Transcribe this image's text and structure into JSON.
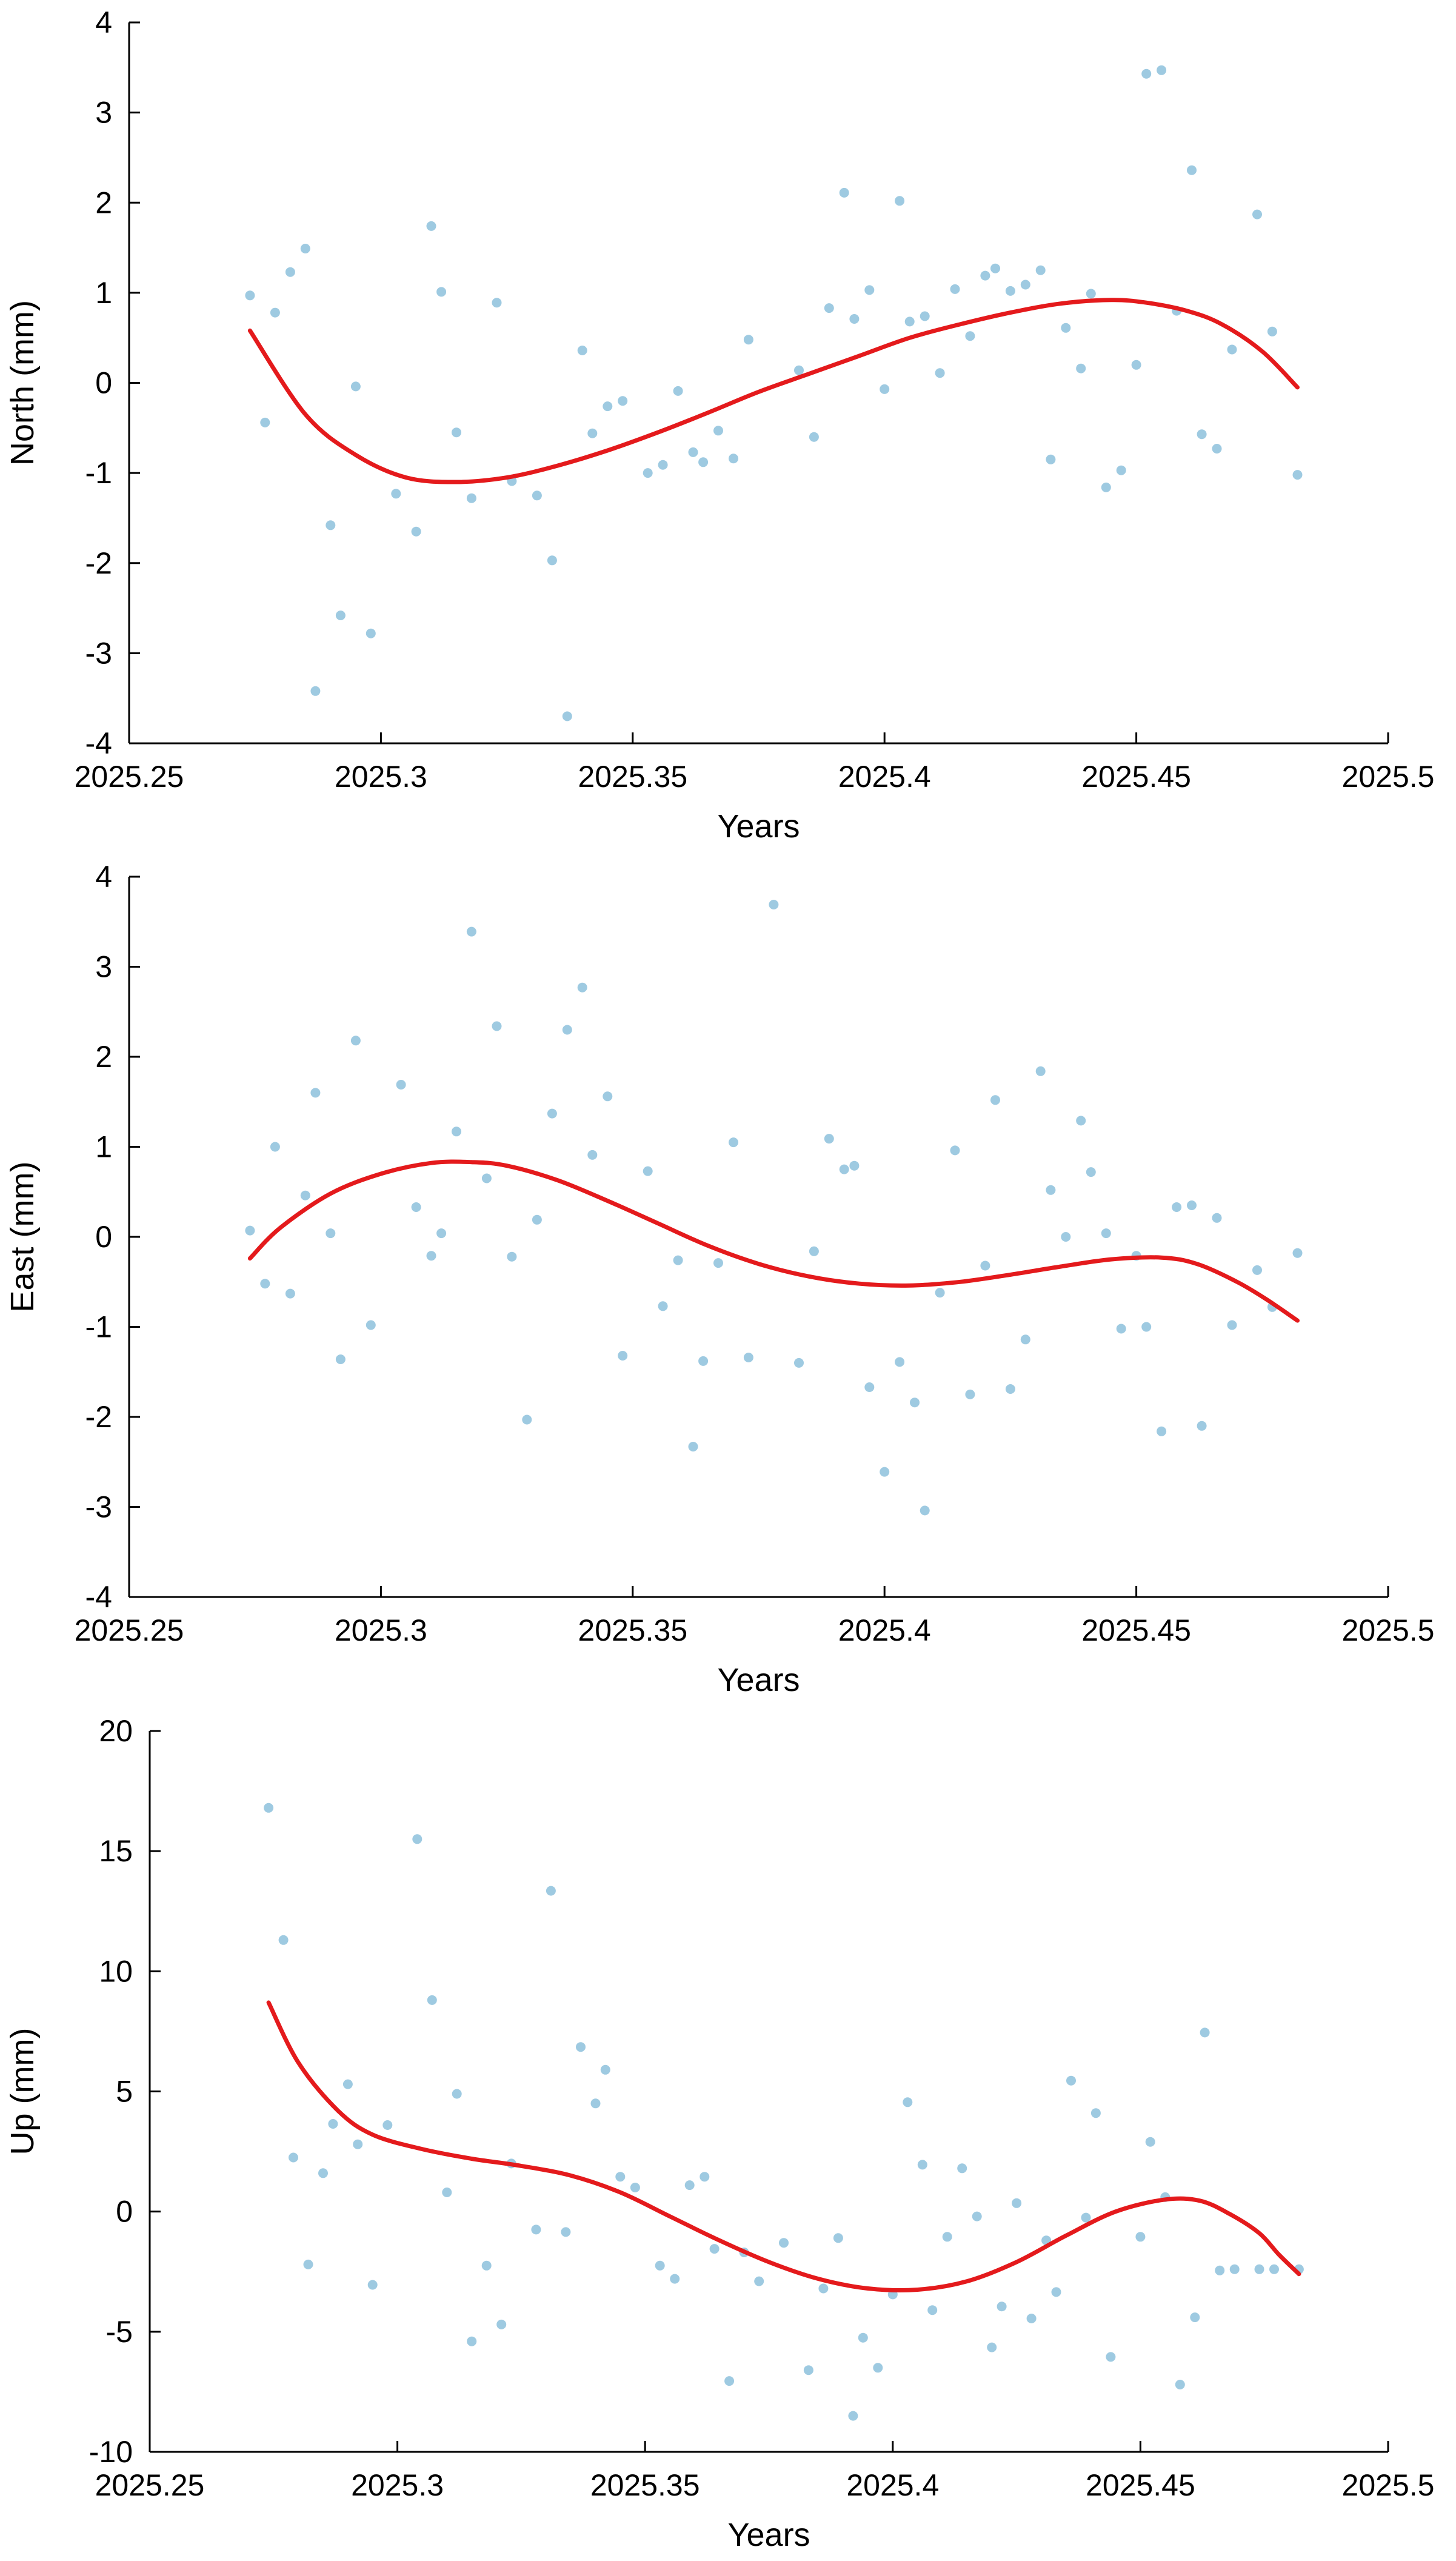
{
  "colors": {
    "points": "#9ecae1",
    "fit": "#e41a1c",
    "axis": "#000000"
  },
  "chart_data": [
    {
      "type": "scatter",
      "xlabel": "Years",
      "ylabel": "North (mm)",
      "xlim": [
        2025.25,
        2025.5
      ],
      "ylim": [
        -4,
        4
      ],
      "xticks": [
        "2025.25",
        "2025.3",
        "2025.35",
        "2025.4",
        "2025.45",
        "2025.5"
      ],
      "yticks": [
        "-4",
        "-3",
        "-2",
        "-1",
        "0",
        "1",
        "2",
        "3",
        "4"
      ],
      "grid": false,
      "series": [
        {
          "kind": "scatter",
          "x": [
            2025.274,
            2025.277,
            2025.279,
            2025.282,
            2025.285,
            2025.287,
            2025.29,
            2025.292,
            2025.295,
            2025.298,
            2025.303,
            2025.307,
            2025.31,
            2025.312,
            2025.315,
            2025.318,
            2025.323,
            2025.326,
            2025.331,
            2025.334,
            2025.337,
            2025.34,
            2025.342,
            2025.345,
            2025.348,
            2025.353,
            2025.356,
            2025.359,
            2025.362,
            2025.364,
            2025.367,
            2025.37,
            2025.373,
            2025.383,
            2025.386,
            2025.389,
            2025.392,
            2025.394,
            2025.397,
            2025.4,
            2025.403,
            2025.405,
            2025.408,
            2025.411,
            2025.414,
            2025.417,
            2025.42,
            2025.422,
            2025.425,
            2025.428,
            2025.431,
            2025.433,
            2025.436,
            2025.439,
            2025.441,
            2025.444,
            2025.447,
            2025.45,
            2025.452,
            2025.455,
            2025.458,
            2025.461,
            2025.463,
            2025.466,
            2025.469,
            2025.474,
            2025.477,
            2025.482
          ],
          "y": [
            0.97,
            -0.44,
            0.78,
            1.23,
            1.49,
            -3.42,
            -1.58,
            -2.58,
            -0.04,
            -2.78,
            -1.23,
            -1.65,
            1.74,
            1.01,
            -0.55,
            -1.28,
            0.89,
            -1.09,
            -1.25,
            -1.97,
            -3.7,
            0.36,
            -0.56,
            -0.26,
            -0.2,
            -1.0,
            -0.91,
            -0.09,
            -0.77,
            -0.88,
            -0.53,
            -0.84,
            0.48,
            0.14,
            -0.6,
            0.83,
            2.11,
            0.71,
            1.03,
            -0.07,
            2.02,
            0.68,
            0.74,
            0.11,
            1.04,
            0.52,
            1.19,
            1.27,
            1.02,
            1.09,
            1.25,
            -0.85,
            0.61,
            0.16,
            0.99,
            -1.16,
            -0.97,
            0.2,
            3.43,
            3.47,
            0.8,
            2.36,
            -0.57,
            -0.73,
            0.37,
            1.87,
            0.57,
            -1.02
          ]
        },
        {
          "kind": "line",
          "x": [
            2025.274,
            2025.285,
            2025.295,
            2025.305,
            2025.315,
            2025.325,
            2025.335,
            2025.345,
            2025.355,
            2025.365,
            2025.375,
            2025.385,
            2025.395,
            2025.405,
            2025.415,
            2025.425,
            2025.435,
            2025.445,
            2025.452,
            2025.46,
            2025.467,
            2025.475,
            2025.482
          ],
          "y": [
            0.58,
            -0.35,
            -0.8,
            -1.05,
            -1.1,
            -1.05,
            -0.92,
            -0.75,
            -0.55,
            -0.33,
            -0.1,
            0.1,
            0.3,
            0.5,
            0.65,
            0.78,
            0.88,
            0.92,
            0.89,
            0.8,
            0.65,
            0.35,
            -0.05
          ]
        }
      ]
    },
    {
      "type": "scatter",
      "xlabel": "Years",
      "ylabel": "East (mm)",
      "xlim": [
        2025.25,
        2025.5
      ],
      "ylim": [
        -4,
        4
      ],
      "xticks": [
        "2025.25",
        "2025.3",
        "2025.35",
        "2025.4",
        "2025.45",
        "2025.5"
      ],
      "yticks": [
        "-4",
        "-3",
        "-2",
        "-1",
        "0",
        "1",
        "2",
        "3",
        "4"
      ],
      "grid": false,
      "series": [
        {
          "kind": "scatter",
          "x": [
            2025.274,
            2025.277,
            2025.279,
            2025.282,
            2025.285,
            2025.287,
            2025.29,
            2025.292,
            2025.295,
            2025.298,
            2025.304,
            2025.307,
            2025.31,
            2025.312,
            2025.315,
            2025.318,
            2025.321,
            2025.323,
            2025.326,
            2025.329,
            2025.331,
            2025.334,
            2025.337,
            2025.34,
            2025.342,
            2025.345,
            2025.348,
            2025.353,
            2025.356,
            2025.359,
            2025.362,
            2025.364,
            2025.367,
            2025.37,
            2025.373,
            2025.378,
            2025.383,
            2025.386,
            2025.389,
            2025.392,
            2025.394,
            2025.397,
            2025.4,
            2025.403,
            2025.406,
            2025.408,
            2025.411,
            2025.414,
            2025.417,
            2025.42,
            2025.422,
            2025.425,
            2025.428,
            2025.431,
            2025.433,
            2025.436,
            2025.439,
            2025.441,
            2025.444,
            2025.447,
            2025.45,
            2025.452,
            2025.455,
            2025.458,
            2025.461,
            2025.463,
            2025.466,
            2025.469,
            2025.474,
            2025.477,
            2025.482
          ],
          "y": [
            0.07,
            -0.52,
            1.0,
            -0.63,
            0.46,
            1.6,
            0.04,
            -1.36,
            2.18,
            -0.98,
            1.69,
            0.33,
            -0.21,
            0.04,
            1.17,
            3.39,
            0.65,
            2.34,
            -0.22,
            -2.03,
            0.19,
            1.37,
            2.3,
            2.77,
            0.91,
            1.56,
            -1.32,
            0.73,
            -0.77,
            -0.26,
            -2.33,
            -1.38,
            -0.29,
            1.05,
            -1.34,
            3.69,
            -1.4,
            -0.16,
            1.09,
            0.75,
            0.79,
            -1.67,
            -2.61,
            -1.39,
            -1.84,
            -3.04,
            -0.62,
            0.96,
            -1.75,
            -0.32,
            1.52,
            -1.69,
            -1.14,
            1.84,
            0.52,
            0.0,
            1.29,
            0.72,
            0.04,
            -1.02,
            -0.21,
            -1.0,
            -2.16,
            0.33,
            0.35,
            -2.1,
            0.21,
            -0.98,
            -0.37,
            -0.78,
            -0.18
          ]
        },
        {
          "kind": "line",
          "x": [
            2025.274,
            2025.28,
            2025.29,
            2025.3,
            2025.31,
            2025.318,
            2025.325,
            2025.335,
            2025.345,
            2025.355,
            2025.365,
            2025.375,
            2025.385,
            2025.395,
            2025.405,
            2025.415,
            2025.425,
            2025.435,
            2025.445,
            2025.455,
            2025.462,
            2025.47,
            2025.476,
            2025.482
          ],
          "y": [
            -0.24,
            0.1,
            0.48,
            0.7,
            0.82,
            0.83,
            0.79,
            0.63,
            0.4,
            0.15,
            -0.1,
            -0.3,
            -0.44,
            -0.52,
            -0.54,
            -0.5,
            -0.42,
            -0.33,
            -0.25,
            -0.23,
            -0.3,
            -0.5,
            -0.7,
            -0.93
          ]
        }
      ]
    },
    {
      "type": "scatter",
      "xlabel": "Years",
      "ylabel": "Up (mm)",
      "xlim": [
        2025.25,
        2025.5
      ],
      "ylim": [
        -10,
        20
      ],
      "xticks": [
        "2025.25",
        "2025.3",
        "2025.35",
        "2025.4",
        "2025.45",
        "2025.5"
      ],
      "yticks": [
        "-10",
        "-5",
        "0",
        "5",
        "10",
        "15",
        "20"
      ],
      "grid": false,
      "series": [
        {
          "kind": "scatter",
          "x": [
            2025.274,
            2025.277,
            2025.279,
            2025.282,
            2025.285,
            2025.287,
            2025.29,
            2025.292,
            2025.295,
            2025.298,
            2025.304,
            2025.307,
            2025.31,
            2025.312,
            2025.315,
            2025.318,
            2025.321,
            2025.323,
            2025.328,
            2025.331,
            2025.334,
            2025.337,
            2025.34,
            2025.342,
            2025.345,
            2025.348,
            2025.353,
            2025.356,
            2025.359,
            2025.362,
            2025.364,
            2025.367,
            2025.37,
            2025.373,
            2025.378,
            2025.383,
            2025.386,
            2025.389,
            2025.392,
            2025.394,
            2025.397,
            2025.4,
            2025.403,
            2025.406,
            2025.408,
            2025.411,
            2025.414,
            2025.417,
            2025.42,
            2025.422,
            2025.425,
            2025.428,
            2025.431,
            2025.433,
            2025.436,
            2025.439,
            2025.441,
            2025.444,
            2025.45,
            2025.452,
            2025.455,
            2025.458,
            2025.461,
            2025.463,
            2025.466,
            2025.469,
            2025.474,
            2025.477,
            2025.482
          ],
          "y": [
            16.8,
            11.3,
            2.25,
            -2.2,
            1.6,
            3.65,
            5.3,
            2.8,
            -3.05,
            3.6,
            15.5,
            8.8,
            0.8,
            4.9,
            -5.4,
            -2.25,
            -4.7,
            2.0,
            -0.75,
            13.35,
            -0.85,
            6.85,
            4.5,
            5.9,
            1.45,
            1.0,
            -2.25,
            -2.8,
            1.1,
            1.45,
            -1.55,
            -7.05,
            -1.7,
            -2.9,
            -1.3,
            -6.6,
            -3.2,
            -1.1,
            -8.5,
            -5.25,
            -6.5,
            -3.45,
            4.55,
            1.95,
            -4.1,
            -1.05,
            1.8,
            -0.2,
            -5.65,
            -3.95,
            0.35,
            -4.45,
            -1.2,
            -3.35,
            5.45,
            -0.25,
            4.1,
            -6.05,
            -1.05,
            2.9,
            0.6,
            -7.2,
            -4.4,
            7.45,
            -2.45,
            -2.4,
            -2.4,
            -2.4,
            -2.4
          ]
        },
        {
          "kind": "line",
          "x": [
            2025.274,
            2025.28,
            2025.288,
            2025.295,
            2025.305,
            2025.315,
            2025.325,
            2025.335,
            2025.345,
            2025.355,
            2025.365,
            2025.375,
            2025.385,
            2025.395,
            2025.405,
            2025.415,
            2025.425,
            2025.435,
            2025.445,
            2025.455,
            2025.462,
            2025.468,
            2025.474,
            2025.478,
            2025.482
          ],
          "y": [
            8.7,
            6.2,
            4.2,
            3.2,
            2.6,
            2.2,
            1.9,
            1.5,
            0.8,
            -0.2,
            -1.2,
            -2.1,
            -2.8,
            -3.2,
            -3.25,
            -2.9,
            -2.1,
            -1.0,
            0.0,
            0.5,
            0.45,
            -0.1,
            -0.9,
            -1.8,
            -2.6
          ]
        }
      ]
    }
  ]
}
